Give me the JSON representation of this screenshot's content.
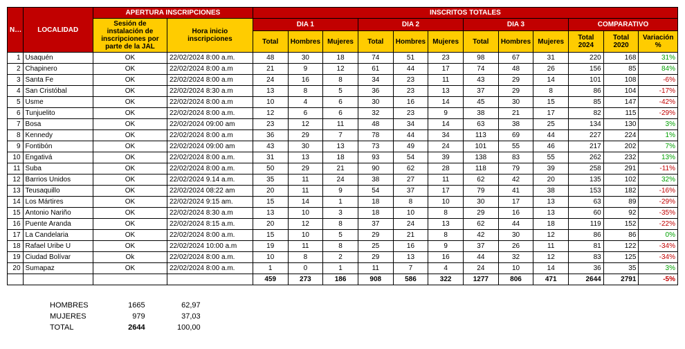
{
  "headers": {
    "apertura": "APERTURA INSCRIPCIONES",
    "inscritos": "INSCRITOS TOTALES",
    "no": "NO.",
    "localidad": "LOCALIDAD",
    "sesion": "Sesión de instalación de inscripciones por parte de la JAL",
    "hora": "Hora inicio inscripciones",
    "dia1": "DIA 1",
    "dia2": "DIA 2",
    "dia3": "DIA 3",
    "comparativo": "COMPARATIVO",
    "total": "Total",
    "hombres": "Hombres",
    "mujeres": "Mujeres",
    "total2024": "Total 2024",
    "total2020": "Total 2020",
    "variacion": "Variación %"
  },
  "rows": [
    {
      "no": 1,
      "loc": "Usaquén",
      "ses": "OK",
      "hora": "22/02/2024 8:00 a.m.",
      "d1": [
        48,
        30,
        18
      ],
      "d2": [
        74,
        51,
        23
      ],
      "d3": [
        98,
        67,
        31
      ],
      "t24": 220,
      "t20": 168,
      "var": 31
    },
    {
      "no": 2,
      "loc": "Chapinero",
      "ses": "OK",
      "hora": "22/02/2024 8:00 a.m",
      "d1": [
        21,
        9,
        12
      ],
      "d2": [
        61,
        44,
        17
      ],
      "d3": [
        74,
        48,
        26
      ],
      "t24": 156,
      "t20": 85,
      "var": 84
    },
    {
      "no": 3,
      "loc": "Santa Fe",
      "ses": "OK",
      "hora": "22/02/2024 8:00 a.m",
      "d1": [
        24,
        16,
        8
      ],
      "d2": [
        34,
        23,
        11
      ],
      "d3": [
        43,
        29,
        14
      ],
      "t24": 101,
      "t20": 108,
      "var": -6
    },
    {
      "no": 4,
      "loc": "San Cristóbal",
      "ses": "OK",
      "hora": "22/02/2024 8:30 a.m",
      "d1": [
        13,
        8,
        5
      ],
      "d2": [
        36,
        23,
        13
      ],
      "d3": [
        37,
        29,
        8
      ],
      "t24": 86,
      "t20": 104,
      "var": -17
    },
    {
      "no": 5,
      "loc": "Usme",
      "ses": "OK",
      "hora": "22/02/2024 8:00 a.m",
      "d1": [
        10,
        4,
        6
      ],
      "d2": [
        30,
        16,
        14
      ],
      "d3": [
        45,
        30,
        15
      ],
      "t24": 85,
      "t20": 147,
      "var": -42
    },
    {
      "no": 6,
      "loc": "Tunjuelito",
      "ses": "OK",
      "hora": "22/02/2024 8:00 a.m.",
      "d1": [
        12,
        6,
        6
      ],
      "d2": [
        32,
        23,
        9
      ],
      "d3": [
        38,
        21,
        17
      ],
      "t24": 82,
      "t20": 115,
      "var": -29
    },
    {
      "no": 7,
      "loc": "Bosa",
      "ses": "OK",
      "hora": "22/02/2024 09:00 am",
      "d1": [
        23,
        12,
        11
      ],
      "d2": [
        48,
        34,
        14
      ],
      "d3": [
        63,
        38,
        25
      ],
      "t24": 134,
      "t20": 130,
      "var": 3
    },
    {
      "no": 8,
      "loc": "Kennedy",
      "ses": "OK",
      "hora": "22/02/2024 8:00 a.m",
      "d1": [
        36,
        29,
        7
      ],
      "d2": [
        78,
        44,
        34
      ],
      "d3": [
        113,
        69,
        44
      ],
      "t24": 227,
      "t20": 224,
      "var": 1
    },
    {
      "no": 9,
      "loc": "Fontibón",
      "ses": "OK",
      "hora": "22/02/2024 09:00 am",
      "d1": [
        43,
        30,
        13
      ],
      "d2": [
        73,
        49,
        24
      ],
      "d3": [
        101,
        55,
        46
      ],
      "t24": 217,
      "t20": 202,
      "var": 7
    },
    {
      "no": 10,
      "loc": "Engativá",
      "ses": "OK",
      "hora": "22/02/2024 8:00 a.m.",
      "d1": [
        31,
        13,
        18
      ],
      "d2": [
        93,
        54,
        39
      ],
      "d3": [
        138,
        83,
        55
      ],
      "t24": 262,
      "t20": 232,
      "var": 13
    },
    {
      "no": 11,
      "loc": "Suba",
      "ses": "OK",
      "hora": "22/02/2024 8:00 a.m.",
      "d1": [
        50,
        29,
        21
      ],
      "d2": [
        90,
        62,
        28
      ],
      "d3": [
        118,
        79,
        39
      ],
      "t24": 258,
      "t20": 291,
      "var": -11
    },
    {
      "no": 12,
      "loc": "Barrios Unidos",
      "ses": "OK",
      "hora": "22/02/2024 9.14 a.m.",
      "d1": [
        35,
        11,
        24
      ],
      "d2": [
        38,
        27,
        11
      ],
      "d3": [
        62,
        42,
        20
      ],
      "t24": 135,
      "t20": 102,
      "var": 32
    },
    {
      "no": 13,
      "loc": "Teusaquillo",
      "ses": "OK",
      "hora": "22/02/2024 08:22 am",
      "d1": [
        20,
        11,
        9
      ],
      "d2": [
        54,
        37,
        17
      ],
      "d3": [
        79,
        41,
        38
      ],
      "t24": 153,
      "t20": 182,
      "var": -16
    },
    {
      "no": 14,
      "loc": "Los Mártires",
      "ses": "OK",
      "hora": "22/02/2024  9:15 am.",
      "d1": [
        15,
        14,
        1
      ],
      "d2": [
        18,
        8,
        10
      ],
      "d3": [
        30,
        17,
        13
      ],
      "t24": 63,
      "t20": 89,
      "var": -29
    },
    {
      "no": 15,
      "loc": "Antonio Nariño",
      "ses": "OK",
      "hora": "22/02/2024 8:30 a.m",
      "d1": [
        13,
        10,
        3
      ],
      "d2": [
        18,
        10,
        8
      ],
      "d3": [
        29,
        16,
        13
      ],
      "t24": 60,
      "t20": 92,
      "var": -35
    },
    {
      "no": 16,
      "loc": "Puente Aranda",
      "ses": "OK",
      "hora": "22/02/2024 8:15 a.m.",
      "d1": [
        20,
        12,
        8
      ],
      "d2": [
        37,
        24,
        13
      ],
      "d3": [
        62,
        44,
        18
      ],
      "t24": 119,
      "t20": 152,
      "var": -22
    },
    {
      "no": 17,
      "loc": "La Candelaria",
      "ses": "OK",
      "hora": "22/02/2024 8:00 a.m.",
      "d1": [
        15,
        10,
        5
      ],
      "d2": [
        29,
        21,
        8
      ],
      "d3": [
        42,
        30,
        12
      ],
      "t24": 86,
      "t20": 86,
      "var": 0
    },
    {
      "no": 18,
      "loc": "Rafael Uribe U",
      "ses": "OK",
      "hora": "22/02/2024 10:00 a.m",
      "d1": [
        19,
        11,
        8
      ],
      "d2": [
        25,
        16,
        9
      ],
      "d3": [
        37,
        26,
        11
      ],
      "t24": 81,
      "t20": 122,
      "var": -34
    },
    {
      "no": 19,
      "loc": "Ciudad Bolívar",
      "ses": "Ok",
      "hora": "22/02/2024 8:00 a.m.",
      "d1": [
        10,
        8,
        2
      ],
      "d2": [
        29,
        13,
        16
      ],
      "d3": [
        44,
        32,
        12
      ],
      "t24": 83,
      "t20": 125,
      "var": -34
    },
    {
      "no": 20,
      "loc": "Sumapaz",
      "ses": "OK",
      "hora": "22/02/2024 8:00 a.m.",
      "d1": [
        1,
        0,
        1
      ],
      "d2": [
        11,
        7,
        4
      ],
      "d3": [
        24,
        10,
        14
      ],
      "t24": 36,
      "t20": 35,
      "var": 3
    }
  ],
  "totals": {
    "d1": [
      459,
      273,
      186
    ],
    "d2": [
      908,
      586,
      322
    ],
    "d3": [
      1277,
      806,
      471
    ],
    "t24": 2644,
    "t20": 2791,
    "var": -5
  },
  "summary": {
    "hombres_label": "HOMBRES",
    "hombres_n": "1665",
    "hombres_p": "62,97",
    "mujeres_label": "MUJERES",
    "mujeres_n": "979",
    "mujeres_p": "37,03",
    "total_label": "TOTAL",
    "total_n": "2644",
    "total_p": "100,00"
  },
  "style": {
    "header_bg": "#c10000",
    "header_fg": "#ffffff",
    "sub_bg": "#ffcc00",
    "sub_fg": "#000000",
    "pos_color": "#00a000",
    "neg_color": "#c10000",
    "font_size": 10
  }
}
